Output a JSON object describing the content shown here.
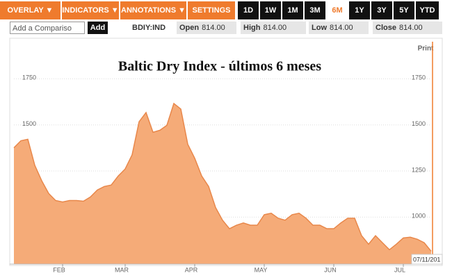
{
  "toolbar": {
    "menus": [
      "OVERLAY ▼",
      "INDICATORS ▼",
      "ANNOTATIONS ▼",
      "SETTINGS ▼"
    ],
    "ranges": [
      "1D",
      "1W",
      "1M",
      "3M",
      "6M",
      "1Y",
      "3Y",
      "5Y",
      "YTD"
    ],
    "active_range": "6M"
  },
  "quote": {
    "input_placeholder": "Add a Compariso",
    "add_button": "Add",
    "ticker": "BDIY:IND",
    "fields": [
      {
        "label": "Open",
        "value": "814.00"
      },
      {
        "label": "High",
        "value": "814.00"
      },
      {
        "label": "Low",
        "value": "814.00"
      },
      {
        "label": "Close",
        "value": "814.00"
      }
    ]
  },
  "chart_data": {
    "type": "area",
    "title": "Baltic Dry Index - últimos 6 meses",
    "categories": [
      null,
      null,
      null,
      null,
      null,
      null,
      null,
      "FEB",
      null,
      null,
      null,
      null,
      null,
      null,
      null,
      null,
      "MAR",
      null,
      null,
      null,
      null,
      null,
      null,
      null,
      null,
      null,
      "APR",
      null,
      null,
      null,
      null,
      null,
      null,
      null,
      null,
      null,
      "MAY",
      null,
      null,
      null,
      null,
      null,
      null,
      null,
      null,
      null,
      "JUN",
      null,
      null,
      null,
      null,
      null,
      null,
      null,
      null,
      null,
      "JUL",
      null,
      null,
      null,
      null
    ],
    "values": [
      1376,
      1414,
      1422,
      1281,
      1197,
      1128,
      1090,
      1082,
      1090,
      1090,
      1086,
      1109,
      1147,
      1166,
      1174,
      1223,
      1261,
      1338,
      1517,
      1567,
      1460,
      1471,
      1498,
      1616,
      1586,
      1395,
      1319,
      1223,
      1166,
      1052,
      983,
      937,
      956,
      968,
      956,
      956,
      1013,
      1021,
      994,
      983,
      1013,
      1021,
      994,
      956,
      956,
      937,
      937,
      968,
      994,
      994,
      899,
      853,
      899,
      861,
      823,
      853,
      887,
      891,
      880,
      861,
      815
    ],
    "color": "#f5ab78",
    "line_color": "#e8874a",
    "ylim": [
      745,
      1970
    ],
    "yticks": [
      1000,
      1250,
      1500,
      1750
    ],
    "grid": true,
    "print_label": "Print",
    "date_label": "07/11/201"
  }
}
